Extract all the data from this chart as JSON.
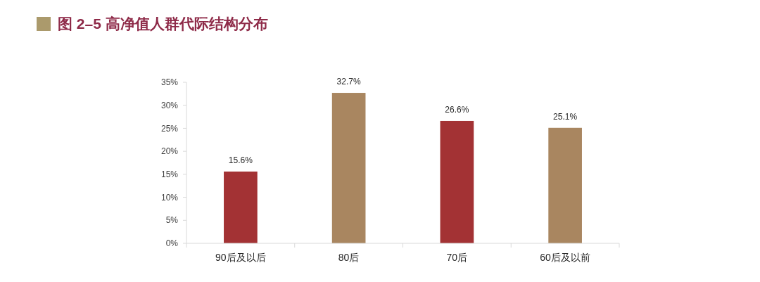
{
  "chart_data": {
    "type": "bar",
    "title": "图 2–5 高净值人群代际结构分布",
    "categories": [
      "90后及以后",
      "80后",
      "70后",
      "60后及以前"
    ],
    "values": [
      15.6,
      32.7,
      26.6,
      25.1
    ],
    "colors": [
      "#a33234",
      "#a98660",
      "#a33234",
      "#a98660"
    ],
    "value_labels": [
      "15.6%",
      "32.7%",
      "26.6%",
      "25.1%"
    ],
    "ylim": [
      0,
      35
    ],
    "yticks": [
      {
        "value": 0,
        "label": "0%"
      },
      {
        "value": 5,
        "label": "5%"
      },
      {
        "value": 10,
        "label": "10%"
      },
      {
        "value": 15,
        "label": "15%"
      },
      {
        "value": 20,
        "label": "20%"
      },
      {
        "value": 25,
        "label": "25%"
      },
      {
        "value": 30,
        "label": "30%"
      },
      {
        "value": 35,
        "label": "35%"
      }
    ],
    "grid": false
  }
}
